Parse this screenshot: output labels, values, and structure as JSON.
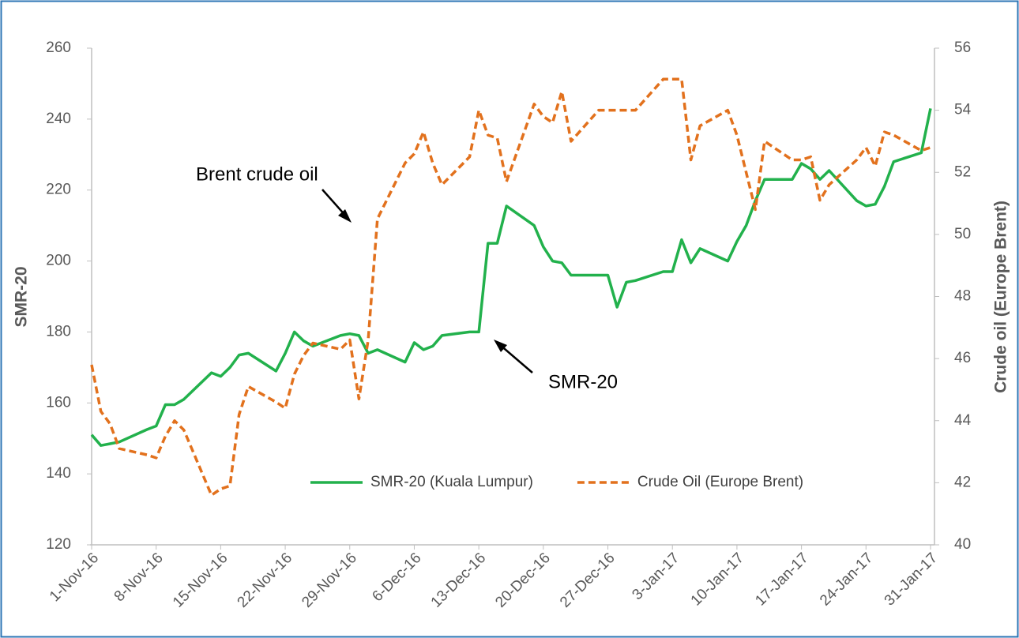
{
  "chart_data": {
    "type": "line",
    "x": [
      "2016-11-01",
      "2016-11-02",
      "2016-11-03",
      "2016-11-04",
      "2016-11-07",
      "2016-11-08",
      "2016-11-09",
      "2016-11-10",
      "2016-11-11",
      "2016-11-14",
      "2016-11-15",
      "2016-11-16",
      "2016-11-17",
      "2016-11-18",
      "2016-11-21",
      "2016-11-22",
      "2016-11-23",
      "2016-11-24",
      "2016-11-25",
      "2016-11-28",
      "2016-11-29",
      "2016-11-30",
      "2016-12-01",
      "2016-12-02",
      "2016-12-05",
      "2016-12-06",
      "2016-12-07",
      "2016-12-08",
      "2016-12-09",
      "2016-12-12",
      "2016-12-13",
      "2016-12-14",
      "2016-12-15",
      "2016-12-16",
      "2016-12-19",
      "2016-12-20",
      "2016-12-21",
      "2016-12-22",
      "2016-12-23",
      "2016-12-26",
      "2016-12-27",
      "2016-12-28",
      "2016-12-29",
      "2016-12-30",
      "2017-01-02",
      "2017-01-03",
      "2017-01-04",
      "2017-01-05",
      "2017-01-06",
      "2017-01-09",
      "2017-01-10",
      "2017-01-11",
      "2017-01-12",
      "2017-01-13",
      "2017-01-16",
      "2017-01-17",
      "2017-01-18",
      "2017-01-19",
      "2017-01-20",
      "2017-01-23",
      "2017-01-24",
      "2017-01-25",
      "2017-01-26",
      "2017-01-27",
      "2017-01-30",
      "2017-01-31"
    ],
    "series": [
      {
        "name": "SMR-20 (Kuala Lumpur)",
        "color": "#22b14c",
        "dash": false,
        "axis": "y",
        "values": [
          151,
          148,
          148.5,
          149,
          152.5,
          153.5,
          159.5,
          159.5,
          161,
          168.5,
          167.5,
          170,
          173.5,
          174,
          169,
          174,
          180,
          177.5,
          176,
          179,
          179.5,
          179,
          174,
          175,
          171.5,
          177,
          175,
          176,
          179,
          180,
          180,
          205,
          205,
          215.5,
          210,
          204,
          200,
          199.5,
          196,
          196,
          196,
          187,
          194,
          194.5,
          197,
          197,
          206,
          199.5,
          203.5,
          200,
          205.5,
          210,
          217,
          223,
          223,
          227.5,
          226,
          223,
          225.5,
          217,
          215.5,
          216,
          221,
          228,
          230.5,
          243
        ]
      },
      {
        "name": "Crude Oil (Europe Brent)",
        "color": "#e2711d",
        "dash": true,
        "axis": "y2",
        "values": [
          45.8,
          44.3,
          43.9,
          43.1,
          42.9,
          42.8,
          43.5,
          44,
          43.7,
          41.6,
          41.8,
          41.9,
          44.2,
          45.1,
          44.6,
          44.4,
          45.5,
          46.1,
          46.5,
          46.3,
          46.6,
          44.7,
          46.6,
          50.5,
          52.3,
          52.6,
          53.3,
          52.3,
          51.6,
          52.5,
          54,
          53.2,
          53.1,
          51.7,
          54.2,
          53.8,
          53.6,
          54.6,
          53,
          54,
          54,
          54,
          54,
          54,
          55,
          55,
          55,
          52.4,
          53.5,
          54,
          53.2,
          52,
          50.8,
          53,
          52.4,
          52.4,
          52.5,
          51.1,
          51.6,
          52.4,
          52.8,
          52.2,
          53.3,
          53.2,
          52.7,
          52.8
        ]
      }
    ],
    "xlim": [
      "2016-11-01",
      "2017-01-31"
    ],
    "xticks": [
      {
        "value": "2016-11-01",
        "label": "1-Nov-16"
      },
      {
        "value": "2016-11-08",
        "label": "8-Nov-16"
      },
      {
        "value": "2016-11-15",
        "label": "15-Nov-16"
      },
      {
        "value": "2016-11-22",
        "label": "22-Nov-16"
      },
      {
        "value": "2016-11-29",
        "label": "29-Nov-16"
      },
      {
        "value": "2016-12-06",
        "label": "6-Dec-16"
      },
      {
        "value": "2016-12-13",
        "label": "13-Dec-16"
      },
      {
        "value": "2016-12-20",
        "label": "20-Dec-16"
      },
      {
        "value": "2016-12-27",
        "label": "27-Dec-16"
      },
      {
        "value": "2017-01-03",
        "label": "3-Jan-17"
      },
      {
        "value": "2017-01-10",
        "label": "10-Jan-17"
      },
      {
        "value": "2017-01-17",
        "label": "17-Jan-17"
      },
      {
        "value": "2017-01-24",
        "label": "24-Jan-17"
      },
      {
        "value": "2017-01-31",
        "label": "31-Jan-17"
      }
    ],
    "ylim": [
      120,
      260
    ],
    "yticks": [
      120,
      140,
      160,
      180,
      200,
      220,
      240,
      260
    ],
    "y2lim": [
      40,
      56
    ],
    "y2ticks": [
      40,
      42,
      44,
      46,
      48,
      50,
      52,
      54,
      56
    ],
    "ylabel": "SMR-20",
    "y2label": "Crude oil (Europe Brent)",
    "annotations": [
      "Brent crude oil",
      "SMR-20"
    ],
    "legend": "bottom"
  }
}
